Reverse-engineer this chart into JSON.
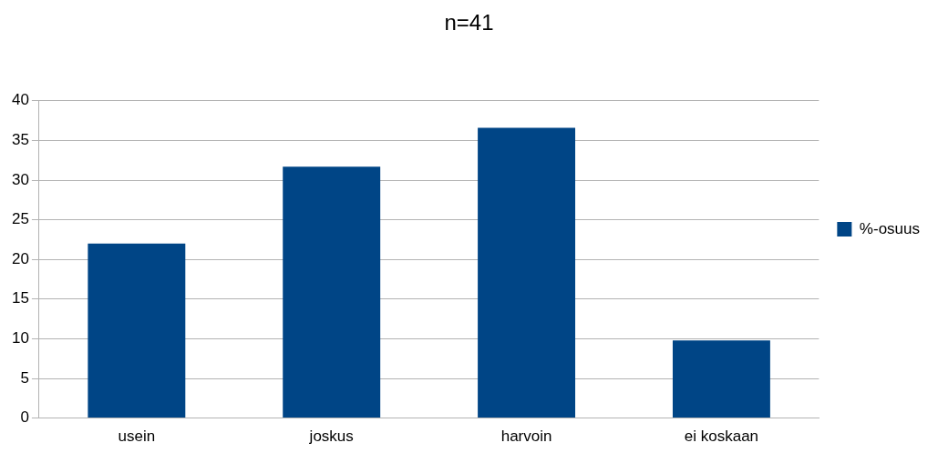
{
  "chart_data": {
    "type": "bar",
    "title": "n=41",
    "categories": [
      "usein",
      "joskus",
      "harvoin",
      "ei koskaan"
    ],
    "series": [
      {
        "name": "%-osuus",
        "color": "#004586",
        "values": [
          22,
          31.7,
          36.6,
          9.8
        ]
      }
    ],
    "ylim": [
      0,
      40
    ],
    "yticks": [
      0,
      5,
      10,
      15,
      20,
      25,
      30,
      35,
      40
    ],
    "grid": "y",
    "legend": "right"
  }
}
